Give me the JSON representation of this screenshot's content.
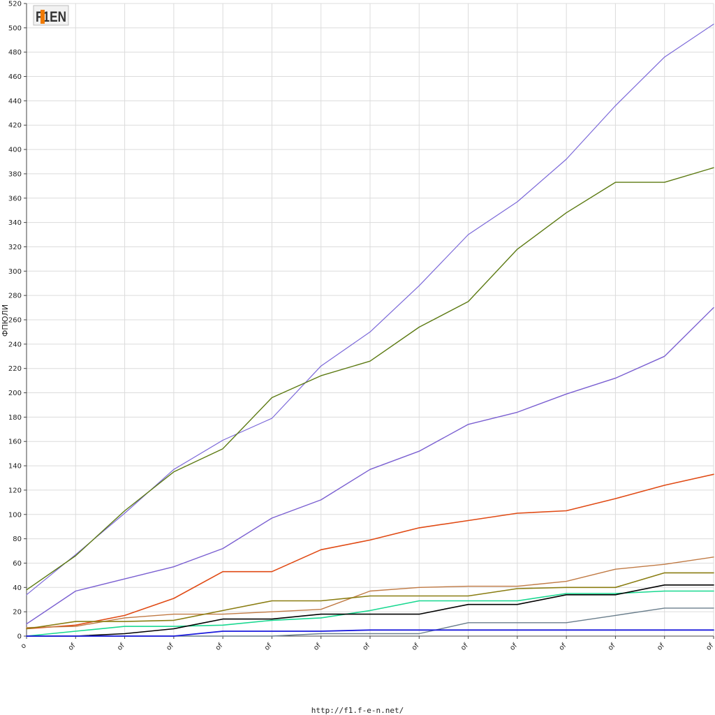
{
  "logo_text": "F1EN",
  "footer": "http://f1.f-e-n.net/",
  "chart_data": {
    "type": "line",
    "ylabel": "ФПЮЛИ",
    "xlabel": "",
    "ylim": [
      0,
      520
    ],
    "ytick_step": 20,
    "grid": true,
    "categories": [
      "o",
      "of",
      "of",
      "of",
      "of",
      "of",
      "of",
      "of",
      "of",
      "of",
      "of",
      "of",
      "of",
      "of",
      "of"
    ],
    "series": [
      {
        "color": "#7b68d9",
        "width": 1.2,
        "values": [
          34,
          67,
          101,
          137,
          161,
          179,
          222,
          250,
          288,
          330,
          357,
          392,
          436,
          476,
          503
        ]
      },
      {
        "color": "#5c7a12",
        "width": 1.4,
        "values": [
          38,
          66,
          103,
          135,
          154,
          196,
          214,
          226,
          254,
          275,
          318,
          348,
          373,
          373,
          385
        ]
      },
      {
        "color": "#7a5fd1",
        "width": 1.4,
        "values": [
          10,
          37,
          47,
          57,
          72,
          97,
          112,
          137,
          152,
          174,
          184,
          199,
          212,
          230,
          270
        ]
      },
      {
        "color": "#e04a14",
        "width": 1.6,
        "values": [
          6,
          9,
          17,
          31,
          53,
          53,
          71,
          79,
          89,
          95,
          101,
          103,
          113,
          124,
          133
        ]
      },
      {
        "color": "#c07a44",
        "width": 1.4,
        "values": [
          7,
          8,
          15,
          18,
          18,
          20,
          22,
          37,
          40,
          41,
          41,
          45,
          55,
          59,
          65
        ]
      },
      {
        "color": "#8a7d12",
        "width": 1.6,
        "values": [
          6,
          12,
          12,
          13,
          21,
          29,
          29,
          33,
          33,
          33,
          39,
          40,
          40,
          52,
          52
        ]
      },
      {
        "color": "#18d890",
        "width": 1.6,
        "values": [
          0,
          4,
          8,
          8,
          9,
          13,
          15,
          21,
          29,
          29,
          29,
          35,
          35,
          37,
          37
        ]
      },
      {
        "color": "#000000",
        "width": 1.6,
        "values": [
          0,
          0,
          2,
          6,
          14,
          14,
          18,
          18,
          18,
          26,
          26,
          34,
          34,
          42,
          42
        ]
      },
      {
        "color": "#6a7e8c",
        "width": 1.4,
        "values": [
          0,
          0,
          0,
          0,
          0,
          0,
          2,
          2,
          2,
          11,
          11,
          11,
          17,
          23,
          23
        ]
      },
      {
        "color": "#1a1adc",
        "width": 1.8,
        "values": [
          0,
          0,
          0,
          0,
          4,
          4,
          4,
          5,
          5,
          5,
          5,
          5,
          5,
          5,
          5
        ]
      }
    ]
  }
}
